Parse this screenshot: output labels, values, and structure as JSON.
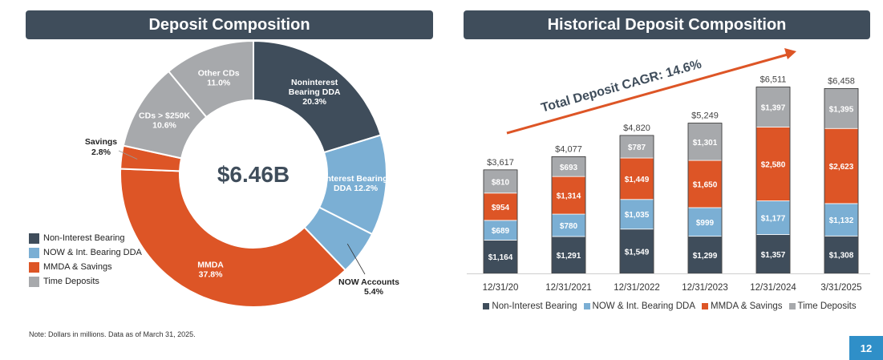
{
  "colors": {
    "noninterest": "#3f4d5b",
    "now": "#7bafd4",
    "mmda": "#dd5526",
    "time": "#a7a9ac",
    "arrow": "#dd5526",
    "accent": "#2f8fc8"
  },
  "left_title": "Deposit Composition",
  "right_title": "Historical Deposit Composition",
  "footnote": "Note: Dollars in millions. Data as of March 31, 2025.",
  "page_number": "12",
  "chart_data": [
    {
      "type": "pie",
      "title": "Deposit Composition",
      "center_label": "$6.46B",
      "slices": [
        {
          "label_lines": [
            "Noninterest",
            "Bearing DDA",
            "20.3%"
          ],
          "value": 20.3,
          "color_key": "noninterest"
        },
        {
          "label_lines": [
            "Interest Bearing",
            "DDA  12.2%"
          ],
          "value": 12.2,
          "color_key": "now"
        },
        {
          "label_lines": [
            "NOW Accounts",
            "5.4%"
          ],
          "value": 5.4,
          "color_key": "now"
        },
        {
          "label_lines": [
            "MMDA",
            "37.8%"
          ],
          "value": 37.8,
          "color_key": "mmda"
        },
        {
          "label_lines": [
            "Savings",
            "2.8%"
          ],
          "value": 2.8,
          "color_key": "mmda"
        },
        {
          "label_lines": [
            "CDs > $250K",
            "10.6%"
          ],
          "value": 10.6,
          "color_key": "time"
        },
        {
          "label_lines": [
            "Other CDs",
            "11.0%"
          ],
          "value": 11.0,
          "color_key": "time"
        }
      ],
      "legend": [
        {
          "label": "Non-Interest Bearing",
          "color_key": "noninterest"
        },
        {
          "label": "NOW & Int. Bearing DDA",
          "color_key": "now"
        },
        {
          "label": "MMDA & Savings",
          "color_key": "mmda"
        },
        {
          "label": "Time Deposits",
          "color_key": "time"
        }
      ],
      "legend_position": "bottom-left"
    },
    {
      "type": "bar",
      "stacked": true,
      "title": "Historical Deposit Composition",
      "categories": [
        "12/31/20",
        "12/31/2021",
        "12/31/2022",
        "12/31/2023",
        "12/31/2024",
        "3/31/2025"
      ],
      "series": [
        {
          "name": "Non-Interest Bearing",
          "color_key": "noninterest",
          "values": [
            1164,
            1291,
            1549,
            1299,
            1357,
            1308
          ],
          "labels": [
            "$1,164",
            "$1,291",
            "$1,549",
            "$1,299",
            "$1,357",
            "$1,308"
          ]
        },
        {
          "name": "NOW & Int. Bearing DDA",
          "color_key": "now",
          "values": [
            689,
            780,
            1035,
            999,
            1177,
            1132
          ],
          "labels": [
            "$689",
            "$780",
            "$1,035",
            "$999",
            "$1,177",
            "$1,132"
          ]
        },
        {
          "name": "MMDA & Savings",
          "color_key": "mmda",
          "values": [
            954,
            1314,
            1449,
            1650,
            2580,
            2623
          ],
          "labels": [
            "$954",
            "$1,314",
            "$1,449",
            "$1,650",
            "$2,580",
            "$2,623"
          ]
        },
        {
          "name": "Time Deposits",
          "color_key": "time",
          "values": [
            810,
            693,
            787,
            1301,
            1397,
            1395
          ],
          "labels": [
            "$810",
            "$693",
            "$787",
            "$1,301",
            "$1,397",
            "$1,395"
          ]
        }
      ],
      "totals": [
        3617,
        4077,
        4820,
        5249,
        6511,
        6458
      ],
      "total_labels": [
        "$3,617",
        "$4,077",
        "$4,820",
        "$5,249",
        "$6,511",
        "$6,458"
      ],
      "annotation": "Total Deposit CAGR: 14.6%",
      "legend_position": "bottom",
      "ylim": [
        0,
        7000
      ]
    }
  ]
}
